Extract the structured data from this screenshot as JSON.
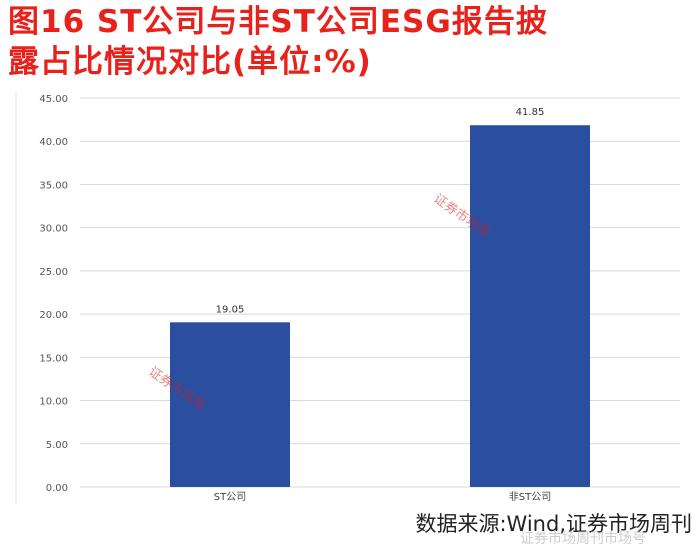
{
  "title": {
    "line1": "图16 ST公司与非ST公司ESG报告披",
    "line2": "露占比情况对比(单位:%)"
  },
  "source": "数据来源:Wind,证券市场周刊",
  "watermark": "证券市场周",
  "footer_watermark": "证券市场周刊市场号",
  "colors": {
    "title": "#e8211b",
    "bar": "#2a4ea0",
    "grid": "#d9d9d9"
  },
  "chart_data": {
    "type": "bar",
    "categories": [
      "ST公司",
      "非ST公司"
    ],
    "values": [
      19.05,
      41.85
    ],
    "data_labels": [
      "19.05",
      "41.85"
    ],
    "ylim": [
      0,
      45
    ],
    "yticks": [
      "0.00",
      "5.00",
      "10.00",
      "15.00",
      "20.00",
      "25.00",
      "30.00",
      "35.00",
      "40.00",
      "45.00"
    ],
    "grid": true
  }
}
